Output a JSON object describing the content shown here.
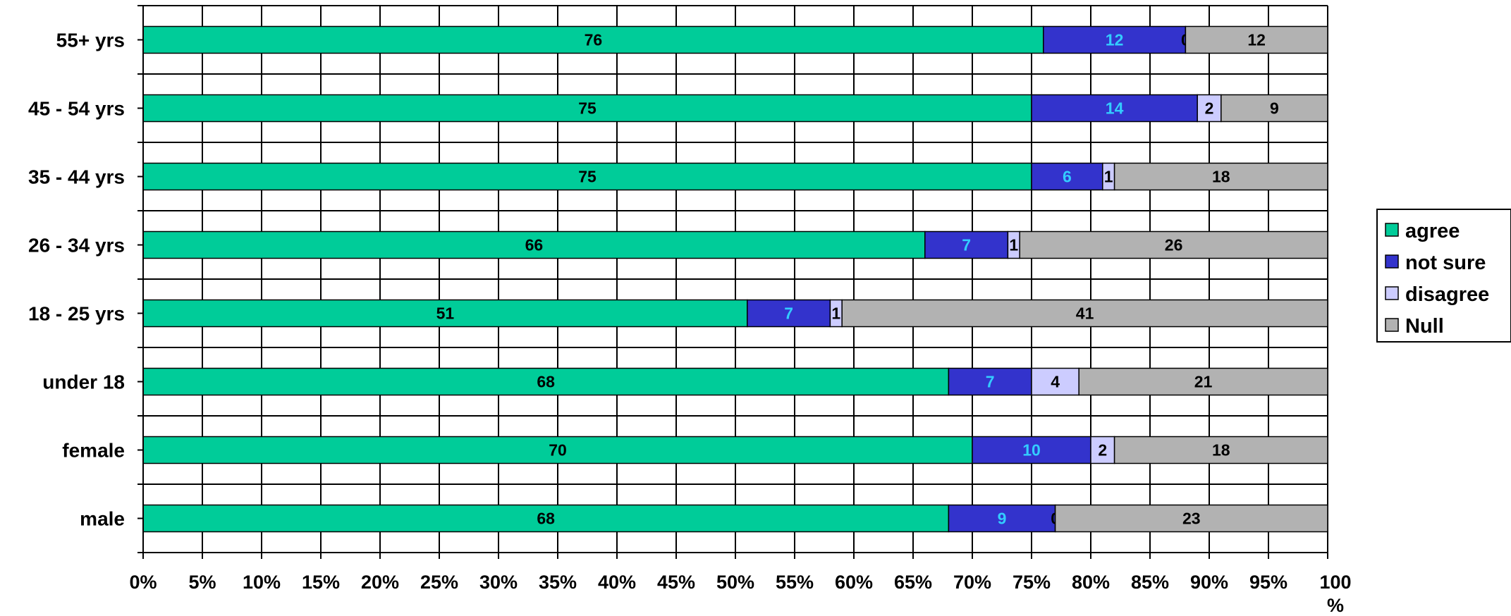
{
  "chart_data": {
    "type": "bar",
    "orientation": "horizontal",
    "stacked": "percent",
    "categories": [
      "55+ yrs",
      "45 - 54 yrs",
      "35 - 44 yrs",
      "26 - 34 yrs",
      "18 - 25 yrs",
      "under 18",
      "female",
      "male"
    ],
    "series": [
      {
        "name": "agree",
        "color": "#00cc99",
        "label_color": "#000000",
        "values": [
          76,
          75,
          75,
          66,
          51,
          68,
          70,
          68
        ]
      },
      {
        "name": "not sure",
        "color": "#3333cc",
        "label_color": "#33ccff",
        "values": [
          12,
          14,
          6,
          7,
          7,
          7,
          10,
          9
        ]
      },
      {
        "name": "disagree",
        "color": "#ccccff",
        "label_color": "#000000",
        "values": [
          0,
          2,
          1,
          1,
          1,
          4,
          2,
          0
        ]
      },
      {
        "name": "Null",
        "color": "#b2b2b2",
        "label_color": "#000000",
        "values": [
          12,
          9,
          18,
          26,
          41,
          21,
          18,
          23
        ]
      }
    ],
    "x_ticks": [
      "0%",
      "5%",
      "10%",
      "15%",
      "20%",
      "25%",
      "30%",
      "35%",
      "40%",
      "45%",
      "50%",
      "55%",
      "60%",
      "65%",
      "70%",
      "75%",
      "80%",
      "85%",
      "90%",
      "95%",
      "100"
    ],
    "x_tick_suffix_last": "%",
    "xlim": [
      0,
      100
    ],
    "grid": true,
    "legend_position": "right"
  }
}
